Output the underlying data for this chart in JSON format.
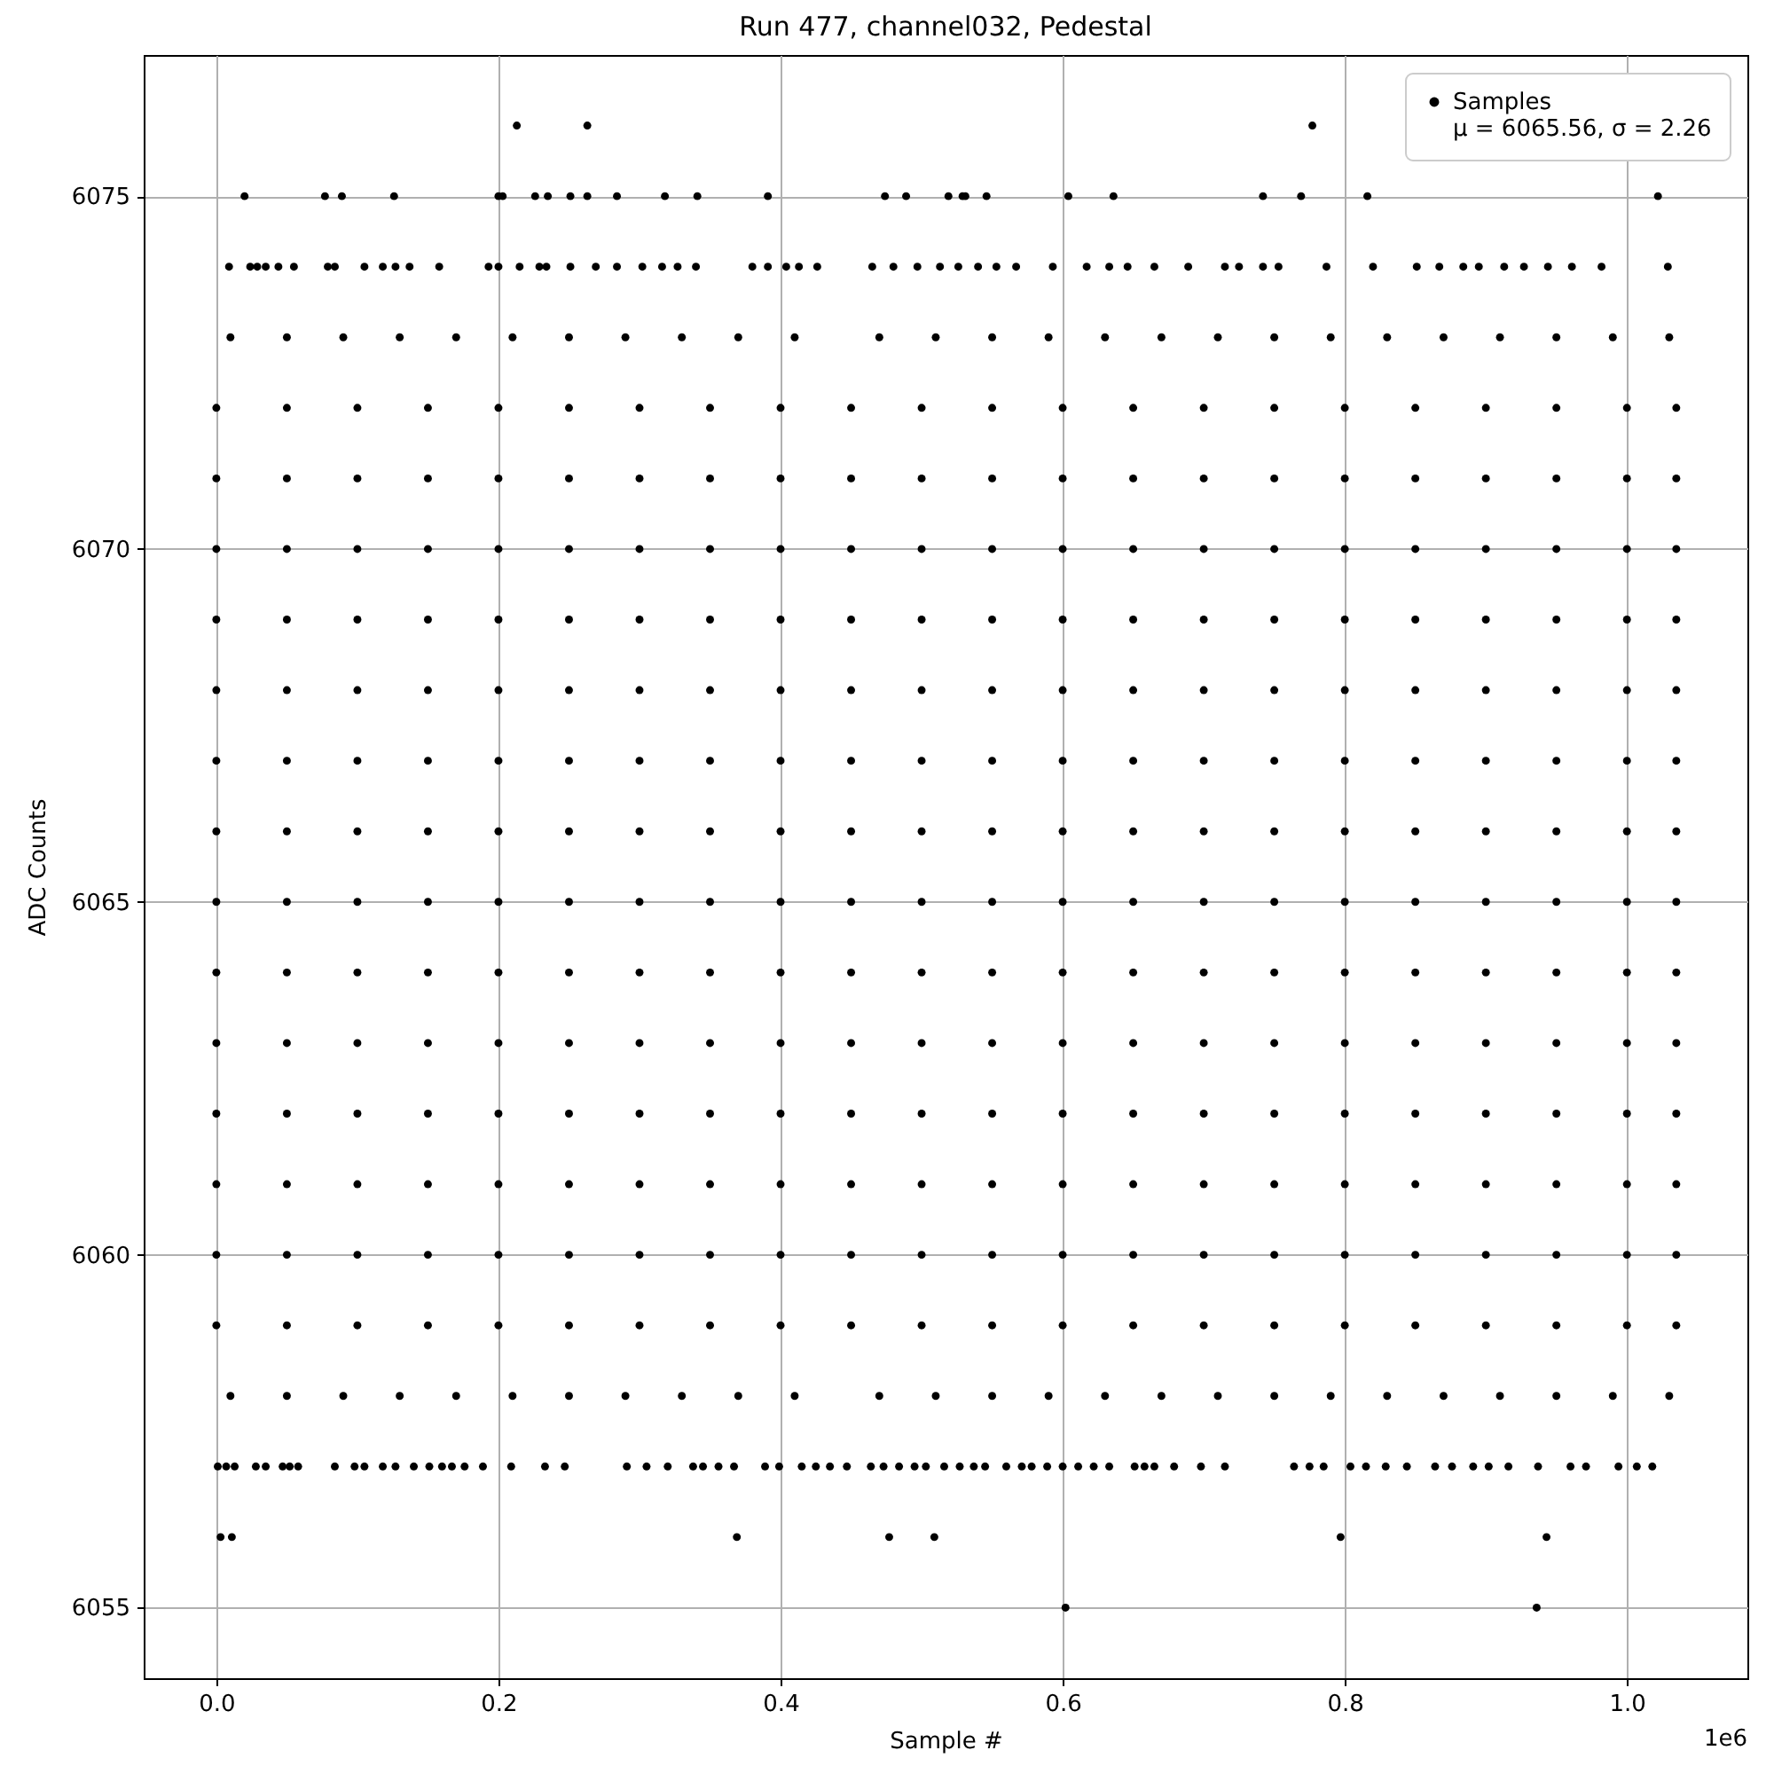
{
  "chart_data": {
    "type": "scatter",
    "title": "Run 477, channel032, Pedestal",
    "xlabel": "Sample #",
    "ylabel": "ADC Counts",
    "annotations": [
      "1e6",
      "μ = 6065.56, σ = 2.26"
    ],
    "xlim": [
      -0.0515,
      1.0854
    ],
    "ylim": [
      6054,
      6077
    ],
    "xticks": [
      {
        "value": 0,
        "label": "0.0"
      },
      {
        "value": 0.2,
        "label": "0.2"
      },
      {
        "value": 0.4,
        "label": "0.4"
      },
      {
        "value": 0.6,
        "label": "0.6"
      },
      {
        "value": 0.8,
        "label": "0.8"
      },
      {
        "value": 1.0,
        "label": "1.0"
      }
    ],
    "yticks": [
      6055,
      6060,
      6065,
      6070,
      6075
    ],
    "grid": true,
    "legend": "top right",
    "marker": "circle",
    "series": [
      {
        "name": "Samples",
        "color": "#000000",
        "x": [
          0.213,
          0.263,
          0.777,
          0.02,
          0.077,
          0.089,
          0.126,
          0.2,
          0.203,
          0.226,
          0.235,
          0.251,
          0.263,
          0.284,
          0.318,
          0.341,
          0.391,
          0.474,
          0.489,
          0.519,
          0.529,
          0.531,
          0.546,
          0.604,
          0.636,
          0.742,
          0.769,
          0.816,
          1.022,
          0.009,
          0.024,
          0.029,
          0.035,
          0.044,
          0.055,
          0.079,
          0.084,
          0.105,
          0.118,
          0.127,
          0.137,
          0.158,
          0.193,
          0.2,
          0.215,
          0.229,
          0.234,
          0.251,
          0.269,
          0.284,
          0.302,
          0.316,
          0.327,
          0.34,
          0.38,
          0.391,
          0.404,
          0.413,
          0.426,
          0.465,
          0.48,
          0.497,
          0.513,
          0.526,
          0.54,
          0.553,
          0.567,
          0.593,
          0.617,
          0.633,
          0.646,
          0.665,
          0.689,
          0.715,
          0.725,
          0.742,
          0.753,
          0.787,
          0.82,
          0.851,
          0.867,
          0.884,
          0.895,
          0.913,
          0.927,
          0.944,
          0.961,
          0.982,
          1.029,
          0.01,
          0.05,
          0.09,
          0.13,
          0.17,
          0.21,
          0.25,
          0.29,
          0.33,
          0.37,
          0.41,
          0.47,
          0.51,
          0.55,
          0.59,
          0.63,
          0.67,
          0.71,
          0.75,
          0.79,
          0.83,
          0.87,
          0.91,
          0.95,
          0.99,
          1.03,
          0,
          0.05,
          0.1,
          0.15,
          0.2,
          0.25,
          0.3,
          0.35,
          0.4,
          0.45,
          0.5,
          0.55,
          0.6,
          0.65,
          0.7,
          0.75,
          0.8,
          0.85,
          0.9,
          0.95,
          1.0,
          1.035,
          0,
          0.05,
          0.1,
          0.15,
          0.2,
          0.25,
          0.3,
          0.35,
          0.4,
          0.45,
          0.5,
          0.55,
          0.6,
          0.65,
          0.7,
          0.75,
          0.8,
          0.85,
          0.9,
          0.95,
          1.0,
          1.035,
          0,
          0.05,
          0.1,
          0.15,
          0.2,
          0.25,
          0.3,
          0.35,
          0.4,
          0.45,
          0.5,
          0.55,
          0.6,
          0.65,
          0.7,
          0.75,
          0.8,
          0.85,
          0.9,
          0.95,
          1.0,
          1.035,
          0,
          0.05,
          0.1,
          0.15,
          0.2,
          0.25,
          0.3,
          0.35,
          0.4,
          0.45,
          0.5,
          0.55,
          0.6,
          0.65,
          0.7,
          0.75,
          0.8,
          0.85,
          0.9,
          0.95,
          1.0,
          1.035,
          0,
          0.05,
          0.1,
          0.15,
          0.2,
          0.25,
          0.3,
          0.35,
          0.4,
          0.45,
          0.5,
          0.55,
          0.6,
          0.65,
          0.7,
          0.75,
          0.8,
          0.85,
          0.9,
          0.95,
          1.0,
          1.035,
          0,
          0.05,
          0.1,
          0.15,
          0.2,
          0.25,
          0.3,
          0.35,
          0.4,
          0.45,
          0.5,
          0.55,
          0.6,
          0.65,
          0.7,
          0.75,
          0.8,
          0.85,
          0.9,
          0.95,
          1.0,
          1.035,
          0,
          0.05,
          0.1,
          0.15,
          0.2,
          0.25,
          0.3,
          0.35,
          0.4,
          0.45,
          0.5,
          0.55,
          0.6,
          0.65,
          0.7,
          0.75,
          0.8,
          0.85,
          0.9,
          0.95,
          1.0,
          1.035,
          0,
          0.05,
          0.1,
          0.15,
          0.2,
          0.25,
          0.3,
          0.35,
          0.4,
          0.45,
          0.5,
          0.55,
          0.6,
          0.65,
          0.7,
          0.75,
          0.8,
          0.85,
          0.9,
          0.95,
          1.0,
          1.035,
          0,
          0.05,
          0.1,
          0.15,
          0.2,
          0.25,
          0.3,
          0.35,
          0.4,
          0.45,
          0.5,
          0.55,
          0.6,
          0.65,
          0.7,
          0.75,
          0.8,
          0.85,
          0.9,
          0.95,
          1.0,
          1.035,
          0,
          0.05,
          0.1,
          0.15,
          0.2,
          0.25,
          0.3,
          0.35,
          0.4,
          0.45,
          0.5,
          0.55,
          0.6,
          0.65,
          0.7,
          0.75,
          0.8,
          0.85,
          0.9,
          0.95,
          1.0,
          1.035,
          0,
          0.05,
          0.1,
          0.15,
          0.2,
          0.25,
          0.3,
          0.35,
          0.4,
          0.45,
          0.5,
          0.55,
          0.6,
          0.65,
          0.7,
          0.75,
          0.8,
          0.85,
          0.9,
          0.95,
          1.0,
          1.035,
          0,
          0.05,
          0.1,
          0.15,
          0.2,
          0.25,
          0.3,
          0.35,
          0.4,
          0.45,
          0.5,
          0.55,
          0.6,
          0.65,
          0.7,
          0.75,
          0.8,
          0.85,
          0.9,
          0.95,
          1.0,
          1.035,
          0,
          0.05,
          0.1,
          0.15,
          0.2,
          0.25,
          0.3,
          0.35,
          0.4,
          0.45,
          0.5,
          0.55,
          0.6,
          0.65,
          0.7,
          0.75,
          0.8,
          0.85,
          0.9,
          0.95,
          1.0,
          1.035,
          0,
          0.05,
          0.1,
          0.15,
          0.2,
          0.25,
          0.3,
          0.35,
          0.4,
          0.45,
          0.5,
          0.55,
          0.6,
          0.65,
          0.7,
          0.75,
          0.8,
          0.85,
          0.9,
          0.95,
          1.0,
          1.035,
          0.01,
          0.05,
          0.09,
          0.13,
          0.17,
          0.21,
          0.25,
          0.29,
          0.33,
          0.37,
          0.41,
          0.47,
          0.51,
          0.55,
          0.59,
          0.63,
          0.67,
          0.71,
          0.75,
          0.79,
          0.83,
          0.87,
          0.91,
          0.95,
          0.99,
          1.03,
          0.001,
          0.007,
          0.013,
          0.028,
          0.035,
          0.047,
          0.052,
          0.058,
          0.084,
          0.098,
          0.105,
          0.118,
          0.127,
          0.14,
          0.151,
          0.16,
          0.167,
          0.176,
          0.189,
          0.209,
          0.233,
          0.247,
          0.291,
          0.305,
          0.32,
          0.338,
          0.345,
          0.356,
          0.367,
          0.389,
          0.399,
          0.415,
          0.425,
          0.435,
          0.447,
          0.464,
          0.473,
          0.484,
          0.495,
          0.503,
          0.516,
          0.527,
          0.537,
          0.545,
          0.56,
          0.571,
          0.578,
          0.589,
          0.6,
          0.611,
          0.622,
          0.633,
          0.651,
          0.658,
          0.665,
          0.679,
          0.698,
          0.715,
          0.764,
          0.775,
          0.785,
          0.804,
          0.815,
          0.829,
          0.844,
          0.864,
          0.876,
          0.891,
          0.902,
          0.916,
          0.937,
          0.96,
          0.971,
          0.994,
          1.007,
          1.018,
          0.003,
          0.011,
          0.369,
          0.477,
          0.509,
          0.797,
          0.943,
          0.602,
          0.936
        ],
        "values": [
          6076,
          6076,
          6076,
          6075,
          6075,
          6075,
          6075,
          6075,
          6075,
          6075,
          6075,
          6075,
          6075,
          6075,
          6075,
          6075,
          6075,
          6075,
          6075,
          6075,
          6075,
          6075,
          6075,
          6075,
          6075,
          6075,
          6075,
          6075,
          6075,
          6074,
          6074,
          6074,
          6074,
          6074,
          6074,
          6074,
          6074,
          6074,
          6074,
          6074,
          6074,
          6074,
          6074,
          6074,
          6074,
          6074,
          6074,
          6074,
          6074,
          6074,
          6074,
          6074,
          6074,
          6074,
          6074,
          6074,
          6074,
          6074,
          6074,
          6074,
          6074,
          6074,
          6074,
          6074,
          6074,
          6074,
          6074,
          6074,
          6074,
          6074,
          6074,
          6074,
          6074,
          6074,
          6074,
          6074,
          6074,
          6074,
          6074,
          6074,
          6074,
          6074,
          6074,
          6074,
          6074,
          6074,
          6074,
          6074,
          6074,
          6073,
          6073,
          6073,
          6073,
          6073,
          6073,
          6073,
          6073,
          6073,
          6073,
          6073,
          6073,
          6073,
          6073,
          6073,
          6073,
          6073,
          6073,
          6073,
          6073,
          6073,
          6073,
          6073,
          6073,
          6073,
          6073,
          6072,
          6072,
          6072,
          6072,
          6072,
          6072,
          6072,
          6072,
          6072,
          6072,
          6072,
          6072,
          6072,
          6072,
          6072,
          6072,
          6072,
          6072,
          6072,
          6072,
          6072,
          6072,
          6071,
          6071,
          6071,
          6071,
          6071,
          6071,
          6071,
          6071,
          6071,
          6071,
          6071,
          6071,
          6071,
          6071,
          6071,
          6071,
          6071,
          6071,
          6071,
          6071,
          6071,
          6071,
          6070,
          6070,
          6070,
          6070,
          6070,
          6070,
          6070,
          6070,
          6070,
          6070,
          6070,
          6070,
          6070,
          6070,
          6070,
          6070,
          6070,
          6070,
          6070,
          6070,
          6070,
          6070,
          6069,
          6069,
          6069,
          6069,
          6069,
          6069,
          6069,
          6069,
          6069,
          6069,
          6069,
          6069,
          6069,
          6069,
          6069,
          6069,
          6069,
          6069,
          6069,
          6069,
          6069,
          6069,
          6068,
          6068,
          6068,
          6068,
          6068,
          6068,
          6068,
          6068,
          6068,
          6068,
          6068,
          6068,
          6068,
          6068,
          6068,
          6068,
          6068,
          6068,
          6068,
          6068,
          6068,
          6068,
          6067,
          6067,
          6067,
          6067,
          6067,
          6067,
          6067,
          6067,
          6067,
          6067,
          6067,
          6067,
          6067,
          6067,
          6067,
          6067,
          6067,
          6067,
          6067,
          6067,
          6067,
          6067,
          6066,
          6066,
          6066,
          6066,
          6066,
          6066,
          6066,
          6066,
          6066,
          6066,
          6066,
          6066,
          6066,
          6066,
          6066,
          6066,
          6066,
          6066,
          6066,
          6066,
          6066,
          6066,
          6065,
          6065,
          6065,
          6065,
          6065,
          6065,
          6065,
          6065,
          6065,
          6065,
          6065,
          6065,
          6065,
          6065,
          6065,
          6065,
          6065,
          6065,
          6065,
          6065,
          6065,
          6065,
          6064,
          6064,
          6064,
          6064,
          6064,
          6064,
          6064,
          6064,
          6064,
          6064,
          6064,
          6064,
          6064,
          6064,
          6064,
          6064,
          6064,
          6064,
          6064,
          6064,
          6064,
          6064,
          6063,
          6063,
          6063,
          6063,
          6063,
          6063,
          6063,
          6063,
          6063,
          6063,
          6063,
          6063,
          6063,
          6063,
          6063,
          6063,
          6063,
          6063,
          6063,
          6063,
          6063,
          6063,
          6062,
          6062,
          6062,
          6062,
          6062,
          6062,
          6062,
          6062,
          6062,
          6062,
          6062,
          6062,
          6062,
          6062,
          6062,
          6062,
          6062,
          6062,
          6062,
          6062,
          6062,
          6062,
          6061,
          6061,
          6061,
          6061,
          6061,
          6061,
          6061,
          6061,
          6061,
          6061,
          6061,
          6061,
          6061,
          6061,
          6061,
          6061,
          6061,
          6061,
          6061,
          6061,
          6061,
          6061,
          6060,
          6060,
          6060,
          6060,
          6060,
          6060,
          6060,
          6060,
          6060,
          6060,
          6060,
          6060,
          6060,
          6060,
          6060,
          6060,
          6060,
          6060,
          6060,
          6060,
          6060,
          6060,
          6059,
          6059,
          6059,
          6059,
          6059,
          6059,
          6059,
          6059,
          6059,
          6059,
          6059,
          6059,
          6059,
          6059,
          6059,
          6059,
          6059,
          6059,
          6059,
          6059,
          6059,
          6059,
          6058,
          6058,
          6058,
          6058,
          6058,
          6058,
          6058,
          6058,
          6058,
          6058,
          6058,
          6058,
          6058,
          6058,
          6058,
          6058,
          6058,
          6058,
          6058,
          6058,
          6058,
          6058,
          6058,
          6058,
          6058,
          6058,
          6057,
          6057,
          6057,
          6057,
          6057,
          6057,
          6057,
          6057,
          6057,
          6057,
          6057,
          6057,
          6057,
          6057,
          6057,
          6057,
          6057,
          6057,
          6057,
          6057,
          6057,
          6057,
          6057,
          6057,
          6057,
          6057,
          6057,
          6057,
          6057,
          6057,
          6057,
          6057,
          6057,
          6057,
          6057,
          6057,
          6057,
          6057,
          6057,
          6057,
          6057,
          6057,
          6057,
          6057,
          6057,
          6057,
          6057,
          6057,
          6057,
          6057,
          6057,
          6057,
          6057,
          6057,
          6057,
          6057,
          6057,
          6057,
          6057,
          6057,
          6057,
          6057,
          6057,
          6057,
          6057,
          6057,
          6057,
          6057,
          6057,
          6057,
          6057,
          6057,
          6057,
          6057,
          6057,
          6057,
          6056,
          6056,
          6056,
          6056,
          6056,
          6056,
          6056,
          6055,
          6055
        ]
      }
    ]
  }
}
